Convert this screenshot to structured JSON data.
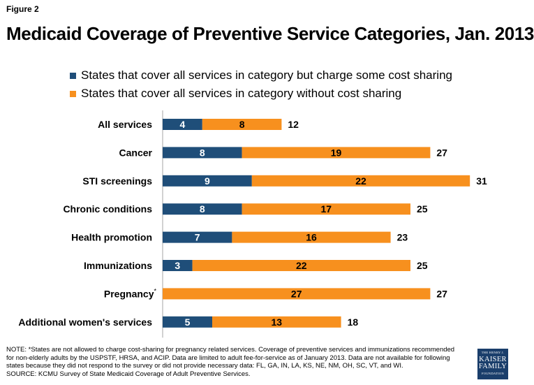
{
  "figure_label": "Figure 2",
  "title": "Medicaid Coverage of Preventive Service Categories, Jan. 2013",
  "colors": {
    "cost_sharing": "#1f4e79",
    "no_cost_sharing": "#f7901e",
    "axis": "#a6a6a6"
  },
  "chart_data": {
    "type": "bar",
    "orientation": "horizontal",
    "stacked": true,
    "title": "Medicaid Coverage of Preventive Service Categories, Jan. 2013",
    "categories": [
      "All services",
      "Cancer",
      "STI screenings",
      "Chronic conditions",
      "Health promotion",
      "Immunizations",
      "Pregnancy",
      "Additional women's services"
    ],
    "category_footnotes": [
      "",
      "",
      "",
      "",
      "",
      "",
      "*",
      ""
    ],
    "series": [
      {
        "name": "States that cover all services in category but charge some cost sharing",
        "values": [
          4,
          8,
          9,
          8,
          7,
          3,
          0,
          5
        ]
      },
      {
        "name": "States that cover all services in category without cost sharing",
        "values": [
          8,
          19,
          22,
          17,
          16,
          22,
          27,
          13
        ]
      }
    ],
    "totals": [
      12,
      27,
      31,
      25,
      23,
      25,
      27,
      18
    ],
    "xlim": [
      0,
      33
    ],
    "xlabel": "",
    "ylabel": "",
    "legend_position": "top",
    "grid": false
  },
  "note_lines": [
    "NOTE: *States are not allowed to charge cost-sharing for pregnancy related services. Coverage of preventive services and immunizations recommended",
    "for non-elderly adults by the USPSTF, HRSA, and ACIP.  Data are limited to adult fee-for-service as of January 2013. Data are not available for following",
    "states because they did not respond to the survey or did not provide necessary data: FL, GA, IN, LA, KS, NE, NM, OH, SC, VT, and WI.",
    "SOURCE:  KCMU Survey of State Medicaid Coverage of Adult Preventive Services."
  ],
  "logo": {
    "line1": "THE HENRY J.",
    "line2": "KAISER",
    "line3": "FAMILY",
    "line4": "FOUNDATION"
  }
}
